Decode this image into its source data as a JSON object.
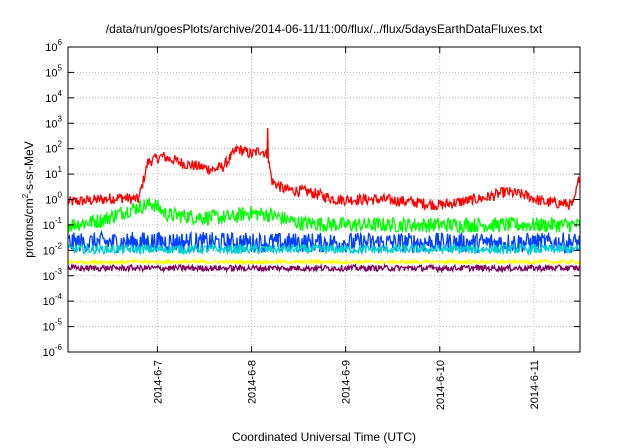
{
  "chart_data": {
    "type": "line",
    "title": "/data/run/goesPlots/archive/2014-06-11/11:00/flux/../flux/5daysEarthDataFluxes.txt",
    "xlabel": "Coordinated Universal Time (UTC)",
    "ylabel": "protons/cm2-s-sr-MeV",
    "ylabel_parts": {
      "pre": "protons/cm",
      "sup": "2",
      "post": "-s-sr-MeV"
    },
    "y_scale": "log",
    "ylim_exp": [
      -6,
      6
    ],
    "y_ticks": [
      {
        "base": "10",
        "exp": "6",
        "e": 6
      },
      {
        "base": "10",
        "exp": "5",
        "e": 5
      },
      {
        "base": "10",
        "exp": "4",
        "e": 4
      },
      {
        "base": "10",
        "exp": "3",
        "e": 3
      },
      {
        "base": "10",
        "exp": "2",
        "e": 2
      },
      {
        "base": "10",
        "exp": "1",
        "e": 1
      },
      {
        "base": "10",
        "exp": "0",
        "e": 0
      },
      {
        "base": "10",
        "exp": "-1",
        "e": -1
      },
      {
        "base": "10",
        "exp": "-2",
        "e": -2
      },
      {
        "base": "10",
        "exp": "-3",
        "e": -3
      },
      {
        "base": "10",
        "exp": "-4",
        "e": -4
      },
      {
        "base": "10",
        "exp": "-5",
        "e": -5
      },
      {
        "base": "10",
        "exp": "-6",
        "e": -6
      }
    ],
    "x_range_days": [
      6.05,
      11.49
    ],
    "x_ticks": [
      {
        "label": "2014-6-7",
        "day": 7
      },
      {
        "label": "2014-6-8",
        "day": 8
      },
      {
        "label": "2014-6-9",
        "day": 9
      },
      {
        "label": "2014-6-10",
        "day": 10
      },
      {
        "label": "2014-6-11",
        "day": 11
      }
    ],
    "grid": true,
    "series": [
      {
        "color": "#ff0000",
        "x_days": [
          6.05,
          6.4,
          6.6,
          6.8,
          6.9,
          7.05,
          7.3,
          7.6,
          7.7,
          7.85,
          8.0,
          8.1,
          8.17,
          8.22,
          8.35,
          8.6,
          8.9,
          9.1,
          9.4,
          9.7,
          10.0,
          10.3,
          10.5,
          10.7,
          10.9,
          11.1,
          11.3,
          11.42,
          11.49
        ],
        "y": [
          0.8,
          1.0,
          1.2,
          1.0,
          30,
          50,
          25,
          15,
          20,
          100,
          60,
          90,
          55,
          5,
          2.5,
          2.0,
          1.0,
          1.0,
          1.0,
          0.8,
          0.6,
          0.9,
          1.2,
          2.0,
          1.5,
          0.8,
          0.7,
          0.6,
          10
        ],
        "noise": 0.22
      },
      {
        "color": "#00ff00",
        "x_days": [
          6.05,
          6.4,
          6.7,
          6.95,
          7.1,
          7.5,
          7.8,
          7.95,
          8.2,
          8.5,
          9.0,
          9.5,
          10.0,
          10.5,
          11.0,
          11.49
        ],
        "y": [
          0.1,
          0.15,
          0.4,
          0.7,
          0.25,
          0.2,
          0.2,
          0.3,
          0.25,
          0.12,
          0.1,
          0.1,
          0.1,
          0.1,
          0.1,
          0.1
        ],
        "noise": 0.3
      },
      {
        "color": "#0040ff",
        "x_days": [
          6.05,
          7.0,
          8.0,
          9.0,
          10.0,
          11.0,
          11.49
        ],
        "y": [
          0.02,
          0.022,
          0.02,
          0.02,
          0.02,
          0.02,
          0.02
        ],
        "noise": 0.4
      },
      {
        "color": "#00d0d0",
        "x_days": [
          6.05,
          7.0,
          8.0,
          9.0,
          10.0,
          11.0,
          11.49
        ],
        "y": [
          0.011,
          0.011,
          0.011,
          0.011,
          0.011,
          0.011,
          0.011
        ],
        "noise": 0.18
      },
      {
        "color": "#ffff00",
        "x_days": [
          6.05,
          7.0,
          8.0,
          9.0,
          10.0,
          11.0,
          11.49
        ],
        "y": [
          0.0035,
          0.0035,
          0.0035,
          0.0035,
          0.0035,
          0.0035,
          0.0035
        ],
        "noise": 0.08
      },
      {
        "color": "#800060",
        "x_days": [
          6.05,
          7.0,
          8.0,
          9.0,
          10.0,
          11.0,
          11.49
        ],
        "y": [
          0.002,
          0.002,
          0.002,
          0.002,
          0.002,
          0.002,
          0.002
        ],
        "noise": 0.12
      }
    ]
  }
}
